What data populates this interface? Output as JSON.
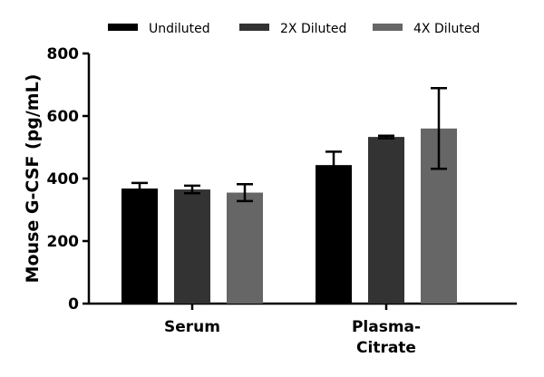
{
  "chart_data": {
    "type": "bar",
    "title": "",
    "xlabel": "",
    "ylabel": "Mouse G-CSF (pg/mL)",
    "ylim": [
      0,
      800
    ],
    "yticks": [
      0,
      200,
      400,
      600,
      800
    ],
    "categories": [
      {
        "lines": [
          "Serum"
        ]
      },
      {
        "lines": [
          "Plasma-",
          "Citrate"
        ]
      }
    ],
    "series": [
      {
        "name": "Undiluted",
        "color": "#000000",
        "values": [
          368,
          443
        ],
        "errors": [
          18,
          43
        ]
      },
      {
        "name": "2X Diluted",
        "color": "#333333",
        "values": [
          365,
          533
        ],
        "errors": [
          12,
          4
        ]
      },
      {
        "name": "4X Diluted",
        "color": "#666666",
        "values": [
          355,
          560
        ],
        "errors": [
          27,
          129
        ]
      }
    ],
    "legend": "top",
    "grid": false
  }
}
